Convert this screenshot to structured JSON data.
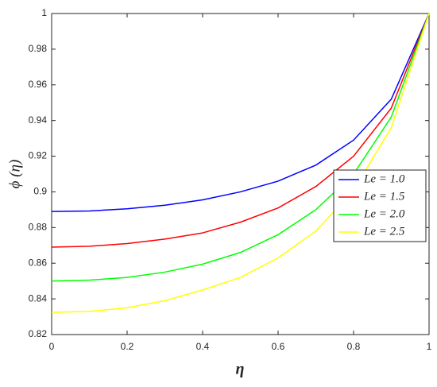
{
  "chart_data": {
    "type": "line",
    "x_label": "η",
    "y_label": "ϕ (η)",
    "x": [
      0,
      0.1,
      0.2,
      0.3,
      0.4,
      0.5,
      0.6,
      0.7,
      0.8,
      0.9,
      1
    ],
    "series": [
      {
        "name": "Le = 1.0",
        "color": "#0000ff",
        "values": [
          0.889,
          0.8893,
          0.8905,
          0.8925,
          0.8955,
          0.9,
          0.906,
          0.915,
          0.929,
          0.952,
          1.0
        ]
      },
      {
        "name": "Le = 1.5",
        "color": "#ff0000",
        "values": [
          0.869,
          0.8695,
          0.871,
          0.8735,
          0.877,
          0.883,
          0.891,
          0.903,
          0.92,
          0.947,
          1.0
        ]
      },
      {
        "name": "Le = 2.0",
        "color": "#00ff00",
        "values": [
          0.85,
          0.8505,
          0.852,
          0.855,
          0.8595,
          0.866,
          0.876,
          0.89,
          0.91,
          0.942,
          1.0
        ]
      },
      {
        "name": "Le = 2.5",
        "color": "#ffff00",
        "values": [
          0.8325,
          0.833,
          0.835,
          0.839,
          0.845,
          0.852,
          0.863,
          0.878,
          0.901,
          0.936,
          1.0
        ]
      }
    ],
    "xlim": [
      0,
      1
    ],
    "ylim": [
      0.82,
      1
    ],
    "xticks": [
      0,
      0.2,
      0.4,
      0.6,
      0.8,
      1
    ],
    "yticks": [
      0.82,
      0.84,
      0.86,
      0.88,
      0.9,
      0.92,
      0.94,
      0.96,
      0.98,
      1
    ],
    "grid": false,
    "legend": "right"
  }
}
